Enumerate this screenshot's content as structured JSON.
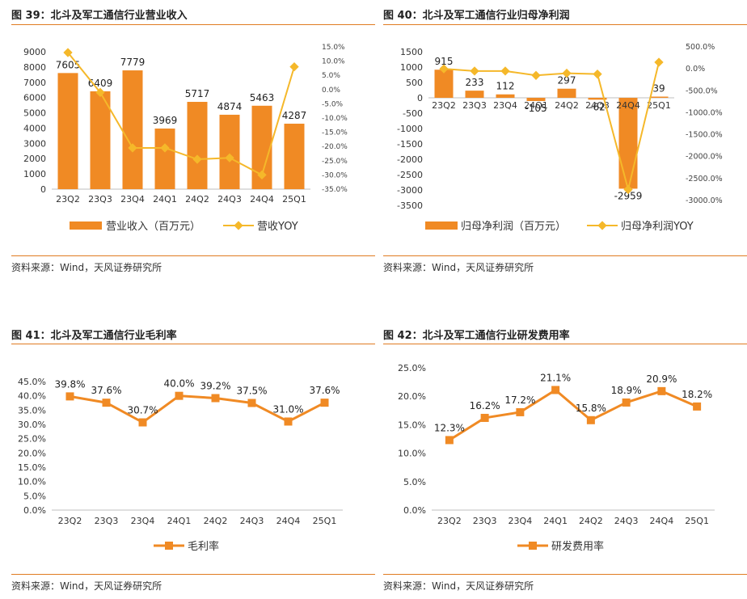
{
  "colors": {
    "bar": "#f08a24",
    "line_yellow": "#f5b82a",
    "line_orange": "#f08a24",
    "rule": "#e07b22"
  },
  "panels": [
    {
      "title": "图 39：北斗及军工通信行业营业收入",
      "source": "资料来源：Wind，天风证券研究所",
      "chart_data": {
        "type": "bar",
        "categories": [
          "23Q2",
          "23Q3",
          "23Q4",
          "24Q1",
          "24Q2",
          "24Q3",
          "24Q4",
          "25Q1"
        ],
        "series": [
          {
            "name": "营业收入（百万元）",
            "type": "bar",
            "axis": "left",
            "values": [
              7605,
              6409,
              7779,
              3969,
              5717,
              4874,
              5463,
              4287
            ],
            "labels": [
              "7605",
              "6409",
              "7779",
              "3969",
              "5717",
              "4874",
              "5463",
              "4287"
            ]
          },
          {
            "name": "营收YOY",
            "type": "line",
            "axis": "right",
            "values": [
              13.0,
              -1.0,
              -20.5,
              -20.5,
              -24.5,
              -24.0,
              -30.0,
              8.0
            ]
          }
        ],
        "left_axis": {
          "min": 0,
          "max": 9000,
          "ticks": [
            "9000",
            "8000",
            "7000",
            "6000",
            "5000",
            "4000",
            "3000",
            "2000",
            "1000",
            "0"
          ]
        },
        "right_axis": {
          "min": -35,
          "max": 15,
          "ticks": [
            "15.0%",
            "10.0%",
            "5.0%",
            "0.0%",
            "-5.0%",
            "-10.0%",
            "-15.0%",
            "-20.0%",
            "-25.0%",
            "-30.0%",
            "-35.0%"
          ]
        },
        "legend": "bottom"
      }
    },
    {
      "title": "图 40：北斗及军工通信行业归母净利润",
      "source": "资料来源：Wind，天风证券研究所",
      "chart_data": {
        "type": "bar",
        "categories": [
          "23Q2",
          "23Q3",
          "23Q4",
          "24Q1",
          "24Q2",
          "24Q3",
          "24Q4",
          "25Q1"
        ],
        "series": [
          {
            "name": "归母净利润（百万元）",
            "type": "bar",
            "axis": "left",
            "values": [
              915,
              233,
              112,
              -105,
              297,
              -62,
              -2959,
              39
            ],
            "labels": [
              "915",
              "233",
              "112",
              "-105",
              "297",
              "-62",
              "-2959",
              "39"
            ]
          },
          {
            "name": "归母净利润YOY",
            "type": "line",
            "axis": "right",
            "values": [
              0,
              -50,
              -50,
              -150,
              -100,
              -120,
              -2750,
              150
            ]
          }
        ],
        "left_axis": {
          "min": -3500,
          "max": 1500,
          "ticks": [
            "1500",
            "1000",
            "500",
            "0",
            "-500",
            "-1000",
            "-1500",
            "-2000",
            "-2500",
            "-3000",
            "-3500"
          ]
        },
        "right_axis": {
          "min": -3000,
          "max": 500,
          "ticks": [
            "500.0%",
            "0.0%",
            "-500.0%",
            "-1000.0%",
            "-1500.0%",
            "-2000.0%",
            "-2500.0%",
            "-3000.0%"
          ]
        },
        "legend": "bottom"
      }
    },
    {
      "title": "图 41：北斗及军工通信行业毛利率",
      "source": "资料来源：Wind，天风证券研究所",
      "chart_data": {
        "type": "line",
        "categories": [
          "23Q2",
          "23Q3",
          "23Q4",
          "24Q1",
          "24Q2",
          "24Q3",
          "24Q4",
          "25Q1"
        ],
        "series": [
          {
            "name": "毛利率",
            "values": [
              39.8,
              37.6,
              30.7,
              40.0,
              39.2,
              37.5,
              31.0,
              37.6
            ],
            "labels": [
              "39.8%",
              "37.6%",
              "30.7%",
              "40.0%",
              "39.2%",
              "37.5%",
              "31.0%",
              "37.6%"
            ]
          }
        ],
        "left_axis": {
          "min": 0,
          "max": 45,
          "ticks": [
            "45.0%",
            "40.0%",
            "35.0%",
            "30.0%",
            "25.0%",
            "20.0%",
            "15.0%",
            "10.0%",
            "5.0%",
            "0.0%"
          ]
        },
        "legend": "bottom"
      }
    },
    {
      "title": "图 42：北斗及军工通信行业研发费用率",
      "source": "资料来源：Wind，天风证券研究所",
      "chart_data": {
        "type": "line",
        "categories": [
          "23Q2",
          "23Q3",
          "23Q4",
          "24Q1",
          "24Q2",
          "24Q3",
          "24Q4",
          "25Q1"
        ],
        "series": [
          {
            "name": "研发费用率",
            "values": [
              12.3,
              16.2,
              17.2,
              21.1,
              15.8,
              18.9,
              20.9,
              18.2
            ],
            "labels": [
              "12.3%",
              "16.2%",
              "17.2%",
              "21.1%",
              "15.8%",
              "18.9%",
              "20.9%",
              "18.2%"
            ]
          }
        ],
        "left_axis": {
          "min": 0,
          "max": 25,
          "ticks": [
            "25.0%",
            "20.0%",
            "15.0%",
            "10.0%",
            "5.0%",
            "0.0%"
          ]
        },
        "legend": "bottom"
      }
    }
  ]
}
